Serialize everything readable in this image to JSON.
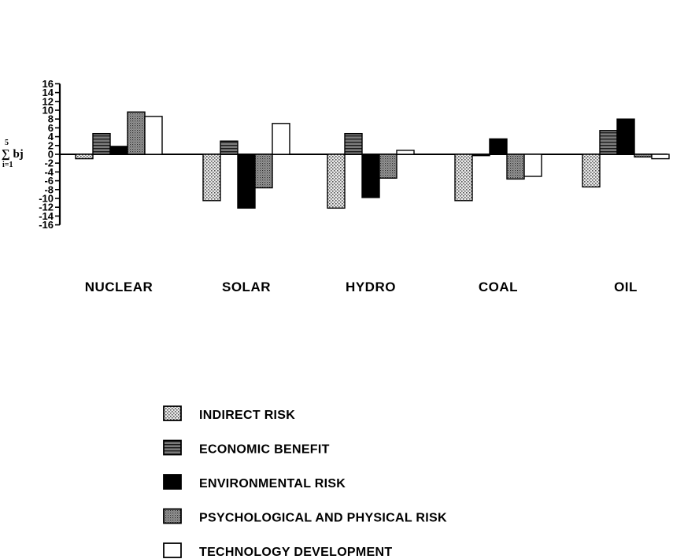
{
  "chart_data": {
    "type": "bar",
    "categories": [
      "NUCLEAR",
      "SOLAR",
      "HYDRO",
      "COAL",
      "OIL"
    ],
    "series": [
      {
        "name": "INDIRECT RISK",
        "values": [
          -1,
          -10.5,
          -12.2,
          -10.5,
          -7.4
        ],
        "pattern": "indirect"
      },
      {
        "name": "ECONOMIC BENEFIT",
        "values": [
          4.7,
          3,
          4.7,
          -0.3,
          5.4
        ],
        "pattern": "economic"
      },
      {
        "name": "ENVIRONMENTAL RISK",
        "values": [
          1.8,
          -12.2,
          -9.8,
          3.5,
          8
        ],
        "pattern": "environmental"
      },
      {
        "name": "PSYCHOLOGICAL AND PHYSICAL RISK",
        "values": [
          9.6,
          -7.6,
          -5.4,
          -5.6,
          -0.6
        ],
        "pattern": "psych"
      },
      {
        "name": "TECHNOLOGY DEVELOPMENT",
        "values": [
          8.6,
          7,
          0.9,
          -5,
          -1
        ],
        "pattern": "tech"
      }
    ],
    "ylim": [
      -16,
      16
    ],
    "yticks": [
      "16",
      "14",
      "12",
      "10",
      "8",
      "6",
      "4",
      "2",
      "0",
      "-2",
      "-4",
      "-6",
      "-8",
      "-10",
      "-12",
      "-14",
      "-16"
    ],
    "ylabel": {
      "top": "5",
      "mid": "∑ bj",
      "bottom": "i=1"
    },
    "grid": false,
    "legend_position": "bottom",
    "colors": {
      "ink": "#000000",
      "background": "#ffffff",
      "dot_fill": "#e6e6e6",
      "psych_fill": "#8c8c8c"
    }
  }
}
